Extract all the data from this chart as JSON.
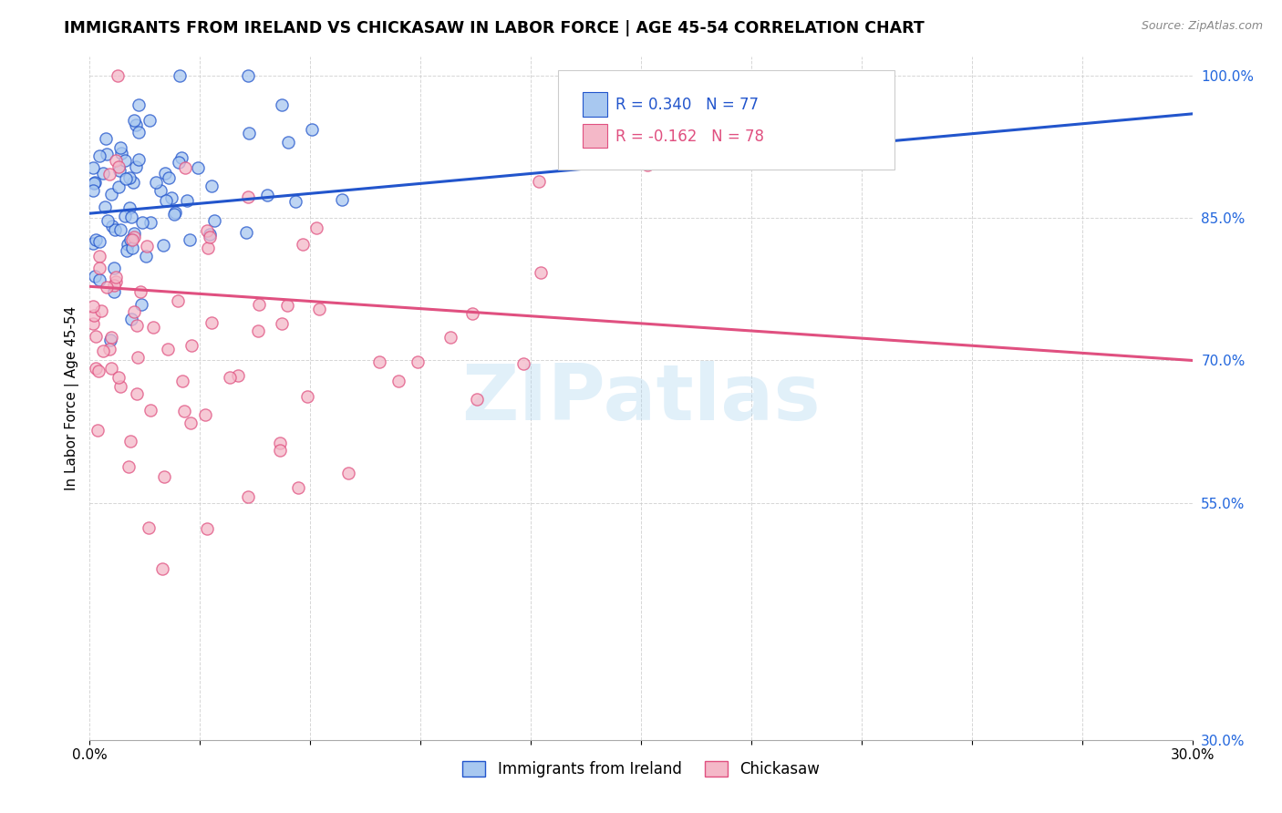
{
  "title": "IMMIGRANTS FROM IRELAND VS CHICKASAW IN LABOR FORCE | AGE 45-54 CORRELATION CHART",
  "source": "Source: ZipAtlas.com",
  "ylabel": "In Labor Force | Age 45-54",
  "xlim": [
    0.0,
    0.3
  ],
  "ylim": [
    0.3,
    1.02
  ],
  "ytick_values": [
    0.3,
    0.55,
    0.7,
    0.85,
    1.0
  ],
  "ytick_labels": [
    "30.0%",
    "55.0%",
    "70.0%",
    "85.0%",
    "100.0%"
  ],
  "xtick_values": [
    0.0,
    0.03,
    0.06,
    0.09,
    0.12,
    0.15,
    0.18,
    0.21,
    0.24,
    0.27,
    0.3
  ],
  "xtick_labels": [
    "0.0%",
    "",
    "",
    "",
    "",
    "",
    "",
    "",
    "",
    "",
    "30.0%"
  ],
  "legend_ireland": "Immigrants from Ireland",
  "legend_chickasaw": "Chickasaw",
  "R_ireland": 0.34,
  "N_ireland": 77,
  "R_chickasaw": -0.162,
  "N_chickasaw": 78,
  "color_ireland": "#a8c8f0",
  "color_chickasaw": "#f4b8c8",
  "line_ireland": "#2255cc",
  "line_chickasaw": "#e05080",
  "watermark": "ZIPatlas",
  "ireland_line_x0": 0.0,
  "ireland_line_y0": 0.855,
  "ireland_line_x1": 0.3,
  "ireland_line_y1": 0.96,
  "chickasaw_line_x0": 0.0,
  "chickasaw_line_y0": 0.778,
  "chickasaw_line_x1": 0.3,
  "chickasaw_line_y1": 0.7
}
